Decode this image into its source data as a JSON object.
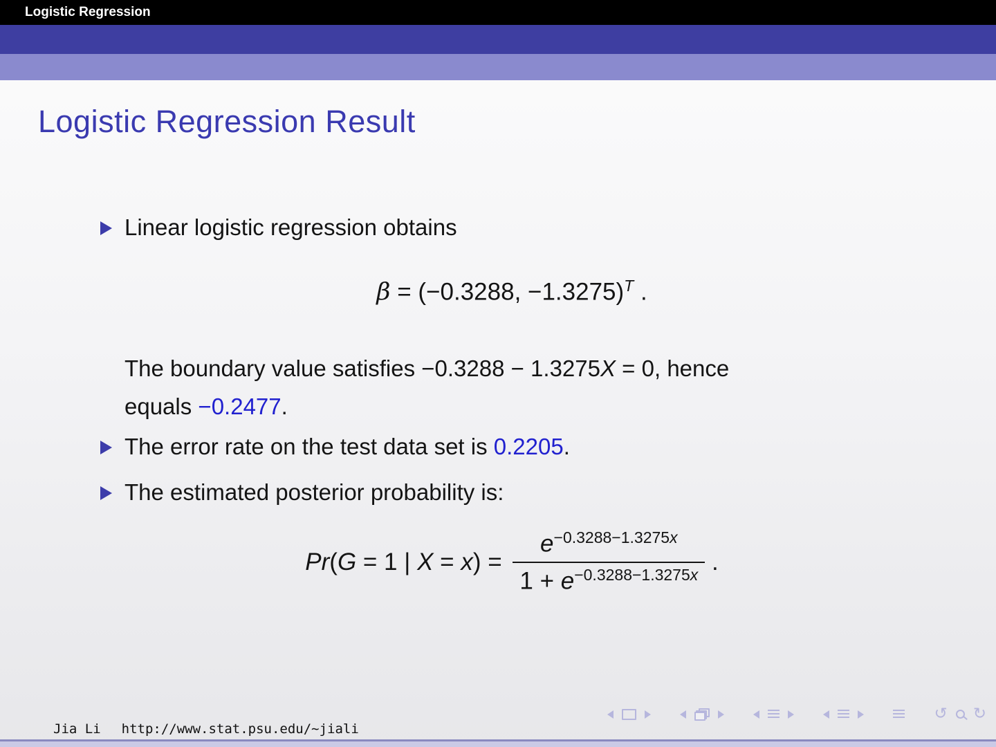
{
  "colors": {
    "header-bg": "#000000",
    "bar-mid": "#3e3ea1",
    "bar-light": "#8a8ace",
    "title-blue": "#3a3ab0",
    "bullet-blue": "#3c3caa",
    "highlight-blue": "#2121cf",
    "text": "#141414",
    "nav": "#b6b6dd",
    "strip-dark": "#8a8ac0",
    "strip-light": "#cacae6"
  },
  "header": {
    "section_title": "Logistic Regression"
  },
  "slide": {
    "title": "Logistic Regression Result"
  },
  "bullets": {
    "b1": {
      "text": "Linear logistic regression obtains"
    },
    "b2": {
      "pre": "The error rate on the test data set is ",
      "highlight": "0.2205",
      "post": "."
    },
    "b3": {
      "text": "The estimated posterior probability is:"
    }
  },
  "formula_beta": {
    "var": "β",
    "rel": " = ",
    "value": "(−0.3288, −1.3275)",
    "sup": "T",
    "period": " ."
  },
  "boundary": {
    "line1_pre": "The boundary value satisfies −0.3288 − 1.3275",
    "line1_var": "X",
    "line1_post": " = 0, hence",
    "line2_pre": "equals ",
    "line2_value": "−0.2477",
    "line2_post": "."
  },
  "formula_posterior": {
    "fn": "Pr",
    "open": "(",
    "var1": "G",
    "mid1": " = 1 ",
    "pipe": "| ",
    "var2": "X",
    "mid2": " = ",
    "var3": "x",
    "close": ") = ",
    "num_base": "e",
    "num_exp_pre": "−0.3288−1.3275",
    "num_exp_var": "x",
    "den_pre": "1 + ",
    "den_base": "e",
    "den_exp_pre": "−0.3288−1.3275",
    "den_exp_var": "x",
    "period": " ."
  },
  "navigation": {
    "icons": [
      "prev-slide",
      "frame",
      "next-slide",
      "prev-frame",
      "frame-stack",
      "next-frame",
      "prev-section",
      "section-list",
      "next-section",
      "prev-subsection",
      "subsection-list",
      "next-subsection",
      "appendix-list",
      "undo",
      "search",
      "redo"
    ]
  },
  "footer": {
    "author": "Jia Li",
    "url": "http://www.stat.psu.edu/∼jiali"
  }
}
